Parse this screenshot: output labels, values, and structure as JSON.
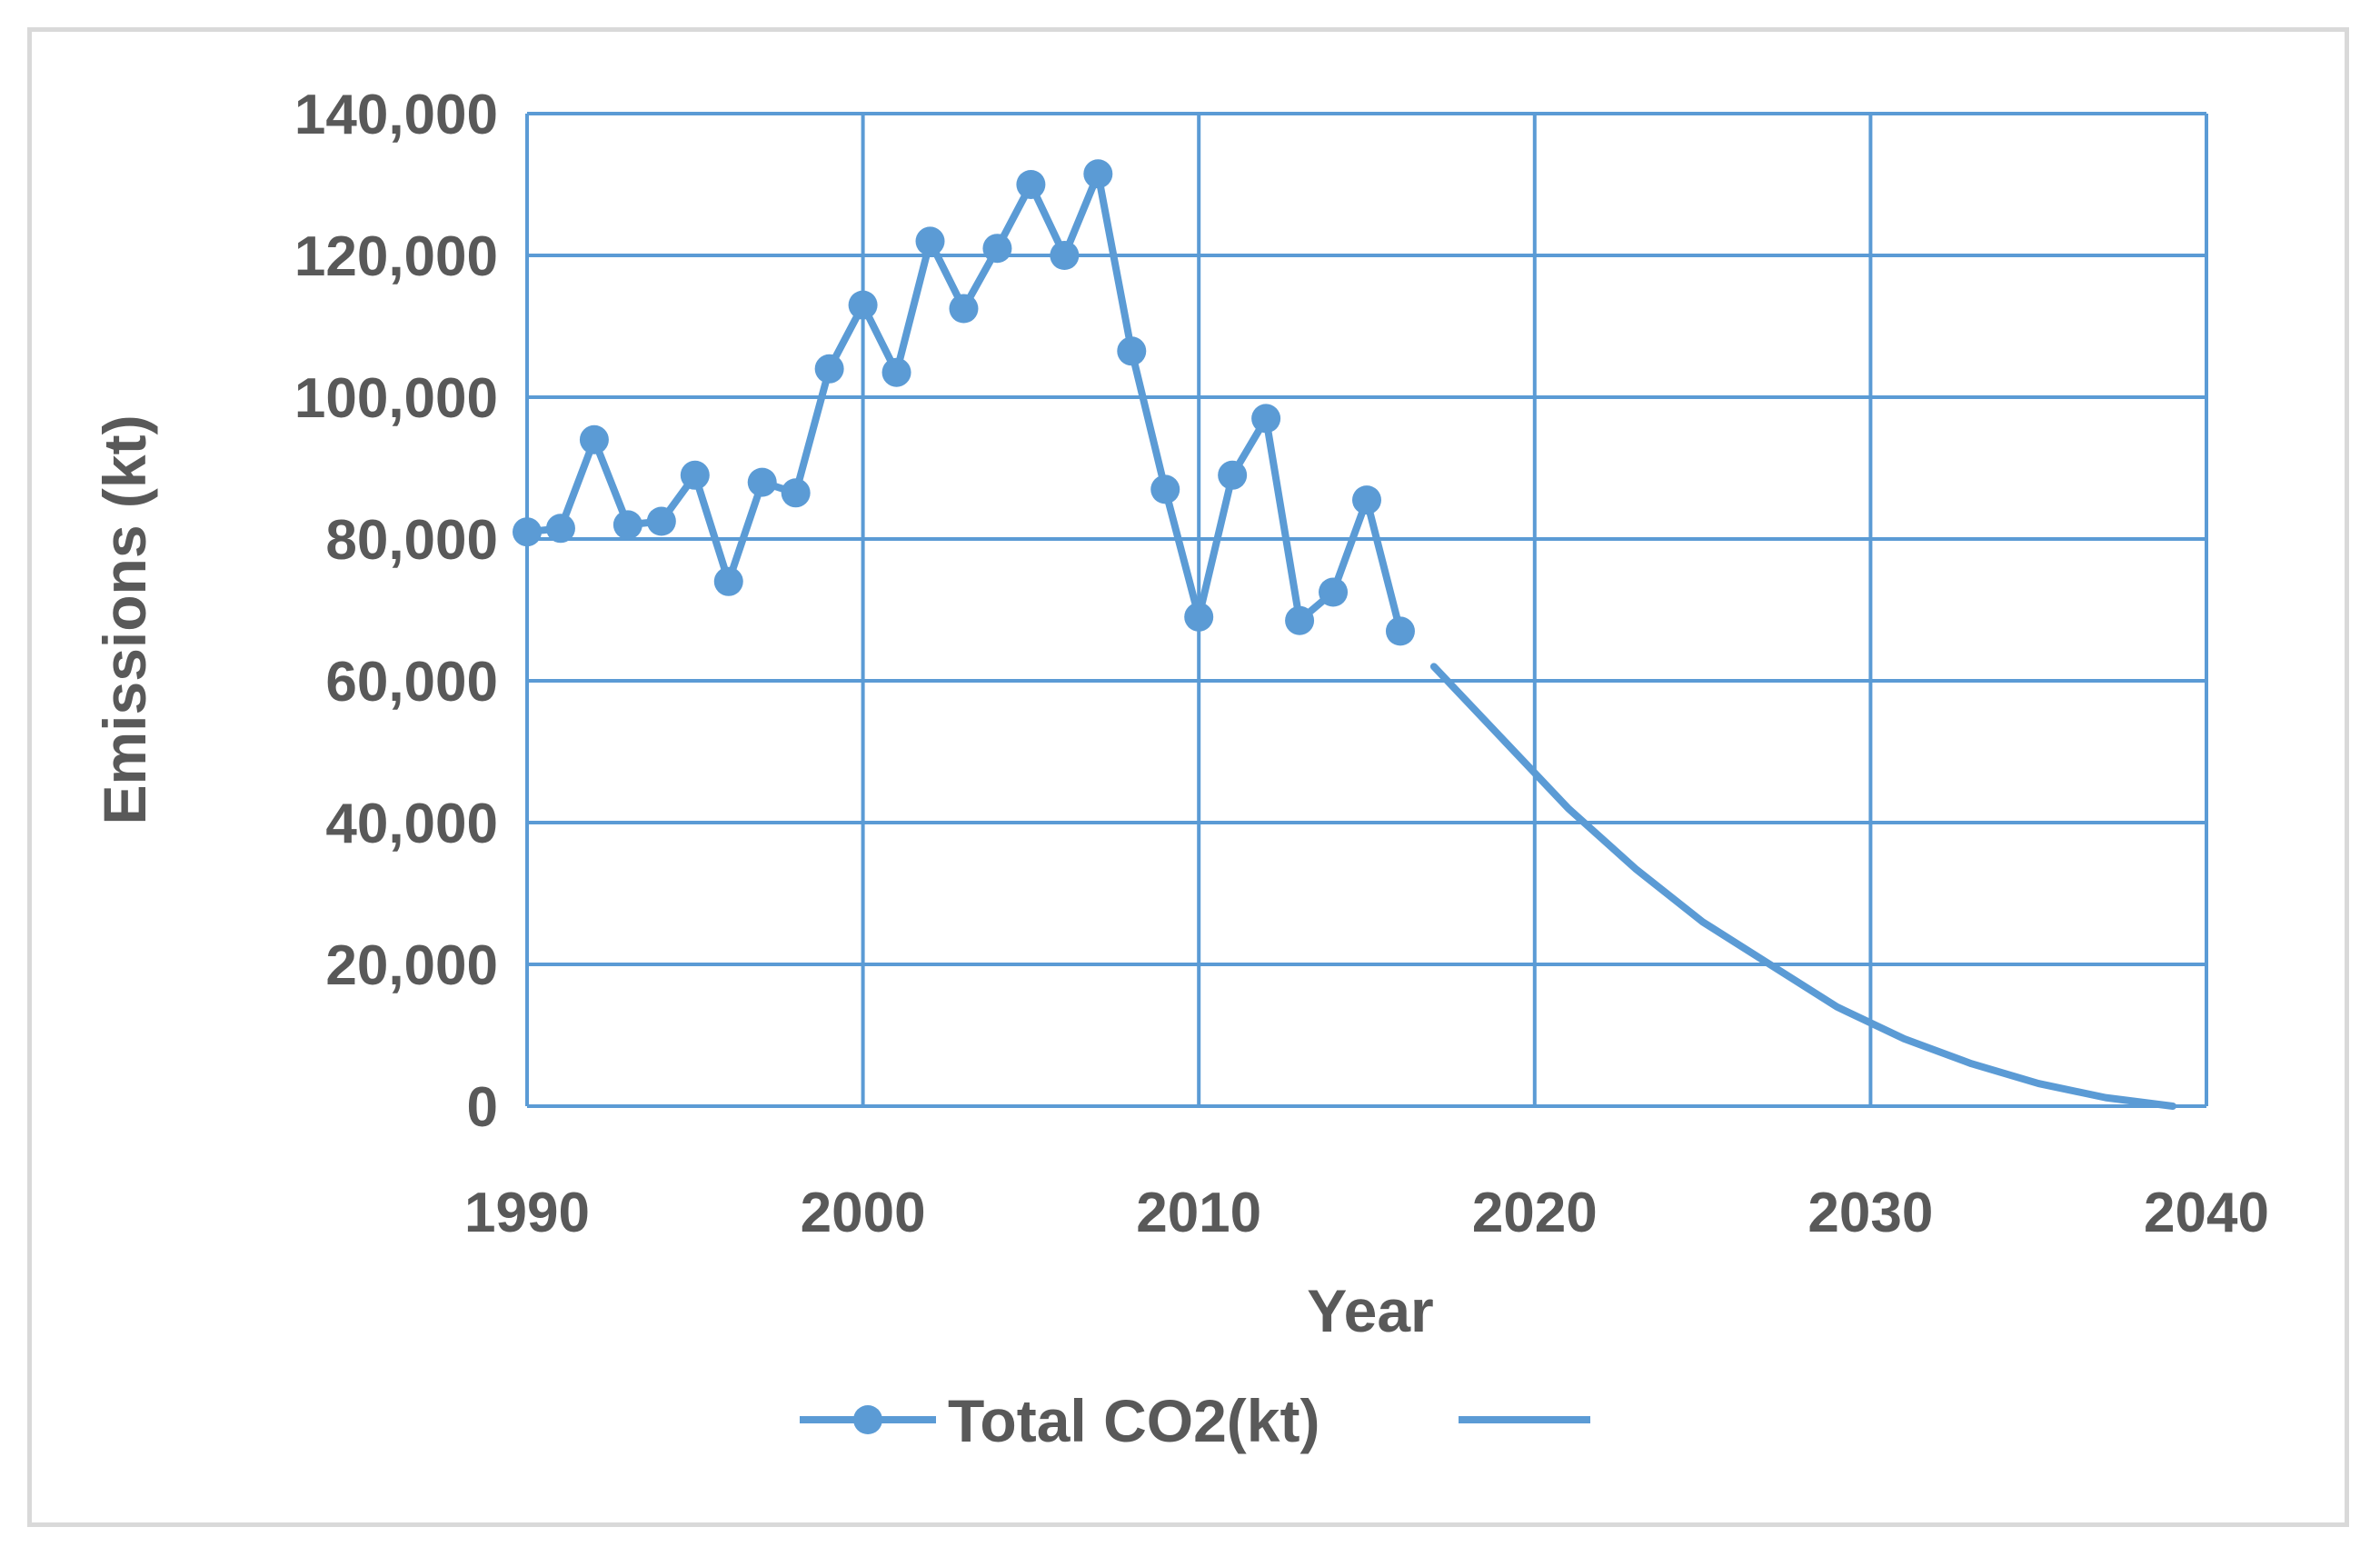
{
  "chart_data": {
    "type": "line",
    "title": "",
    "xlabel": "Year",
    "ylabel": "Emissions (kt)",
    "xlim": [
      1990,
      2040
    ],
    "ylim": [
      0,
      140000
    ],
    "x_ticks": [
      "1990",
      "2000",
      "2010",
      "2020",
      "2030",
      "2040"
    ],
    "y_ticks": [
      "0",
      "20,000",
      "40,000",
      "60,000",
      "80,000",
      "100,000",
      "120,000",
      "140,000"
    ],
    "grid": true,
    "legend_position": "bottom",
    "series_color": "#5b9bd5",
    "series": [
      {
        "name": "Total CO2(kt)",
        "marker": "circle",
        "x": [
          1990,
          1991,
          1992,
          1993,
          1994,
          1995,
          1996,
          1997,
          1998,
          1999,
          2000,
          2001,
          2002,
          2003,
          2004,
          2005,
          2006,
          2007,
          2008,
          2009,
          2010,
          2011,
          2012,
          2013,
          2014,
          2015,
          2016
        ],
        "values": [
          81000,
          81500,
          94000,
          82000,
          82500,
          89000,
          74000,
          88000,
          86500,
          104000,
          113000,
          103500,
          122000,
          112500,
          121000,
          130000,
          120000,
          131500,
          106500,
          87000,
          69000,
          89000,
          97000,
          68500,
          72500,
          85500,
          67000
        ]
      },
      {
        "name": "",
        "marker": "none",
        "x": [
          2017,
          2019,
          2021,
          2023,
          2025,
          2027,
          2029,
          2031,
          2033,
          2035,
          2037,
          2039
        ],
        "values": [
          62000,
          52000,
          42000,
          33500,
          26000,
          20000,
          14000,
          9500,
          6000,
          3200,
          1200,
          0
        ]
      }
    ]
  }
}
